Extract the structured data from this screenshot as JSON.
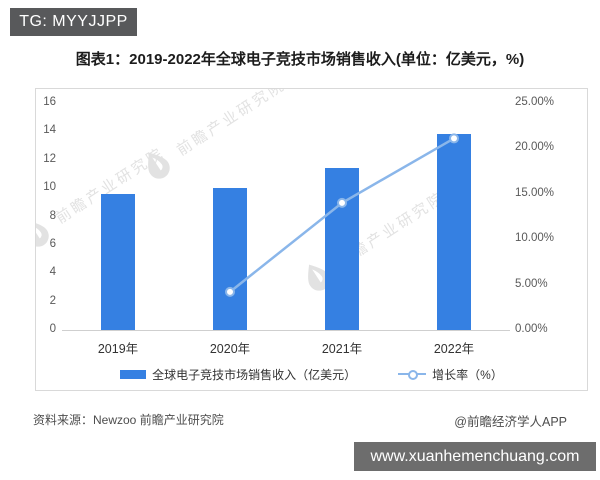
{
  "header": {
    "badge": "TG: MYYJJPP"
  },
  "title": "图表1：2019-2022年全球电子竞技市场销售收入(单位：亿美元，%)",
  "watermark": {
    "text": "前瞻产业研究院"
  },
  "chart_data": {
    "type": "bar",
    "title": "2019-2022年全球电子竞技市场销售收入",
    "categories": [
      "2019年",
      "2020年",
      "2021年",
      "2022年"
    ],
    "series": [
      {
        "name": "全球电子竞技市场销售收入（亿美元）",
        "type": "bar",
        "axis": "left",
        "color": "#3580E2",
        "values": [
          9.6,
          10,
          11.4,
          13.8
        ]
      },
      {
        "name": "增长率（%）",
        "type": "line",
        "axis": "right",
        "color": "#8AB6EA",
        "values": [
          null,
          4.2,
          14,
          21.1
        ]
      }
    ],
    "left_axis": {
      "label": "亿美元",
      "min": 0,
      "max": 16,
      "step": 2,
      "ticks": [
        "16",
        "14",
        "12",
        "10",
        "8",
        "6",
        "4",
        "2",
        "0"
      ]
    },
    "right_axis": {
      "label": "%",
      "min": 0,
      "max": 25,
      "step": 5,
      "ticks": [
        "25.00%",
        "20.00%",
        "15.00%",
        "10.00%",
        "5.00%",
        "0.00%"
      ]
    },
    "legend_position": "bottom",
    "grid": false
  },
  "footer": {
    "source": "资料来源：Newzoo 前瞻产业研究院",
    "credit": "@前瞻经济学人APP"
  },
  "bottom_bar": {
    "url": "www.xuanhemenchuang.com"
  }
}
